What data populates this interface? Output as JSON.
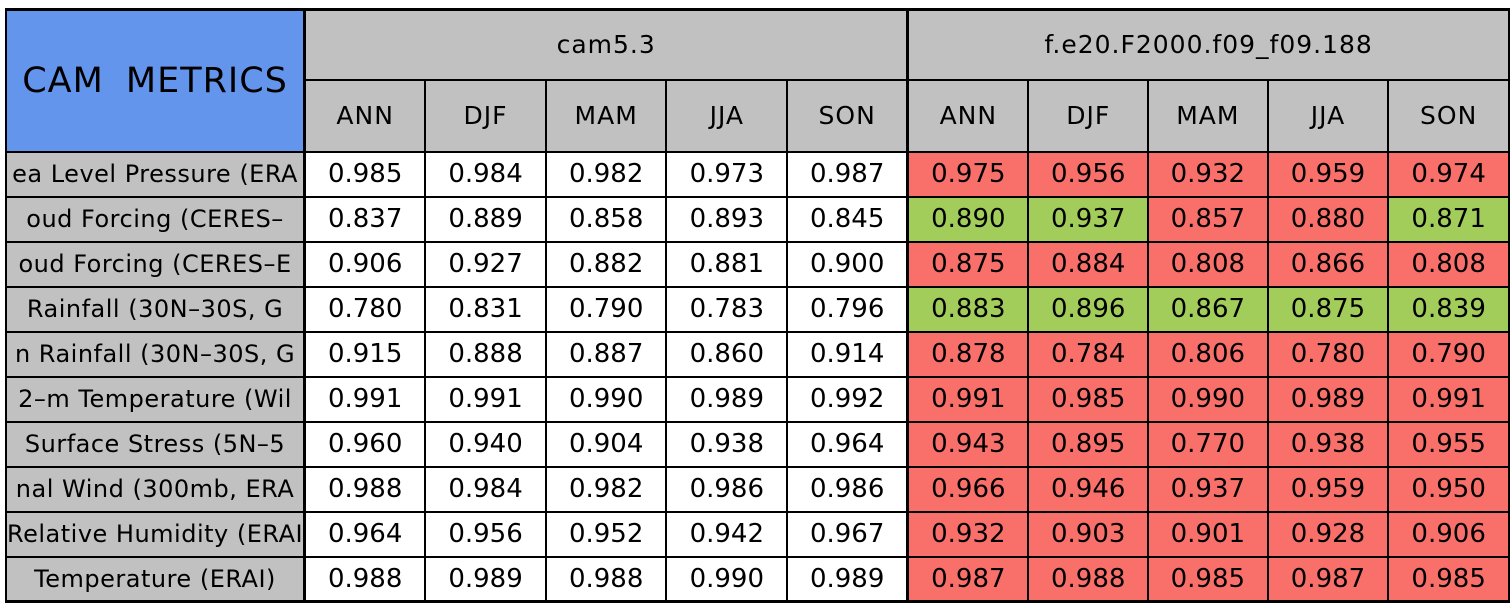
{
  "colors": {
    "header-blue": "#6495ED",
    "header-gray": "#C1C1C1",
    "worse-red": "#F9706A",
    "better-green": "#A2CD5A",
    "border-black": "#000000",
    "cell-white": "#FFFFFF"
  },
  "chart_data": {
    "type": "table",
    "title": "CAM METRICS",
    "column_groups": [
      "cam5.3",
      "f.e20.F2000.f09_f09.188"
    ],
    "season_columns": [
      "ANN",
      "DJF",
      "MAM",
      "JJA",
      "SON"
    ],
    "rows": [
      {
        "label": "ea Level Pressure (ERA",
        "cam53": [
          "0.985",
          "0.984",
          "0.982",
          "0.973",
          "0.987"
        ],
        "fe20": [
          "0.975",
          "0.956",
          "0.932",
          "0.959",
          "0.974"
        ],
        "fe20_status": [
          "worse",
          "worse",
          "worse",
          "worse",
          "worse"
        ]
      },
      {
        "label": "oud Forcing (CERES–",
        "cam53": [
          "0.837",
          "0.889",
          "0.858",
          "0.893",
          "0.845"
        ],
        "fe20": [
          "0.890",
          "0.937",
          "0.857",
          "0.880",
          "0.871"
        ],
        "fe20_status": [
          "better",
          "better",
          "worse",
          "worse",
          "better"
        ]
      },
      {
        "label": "oud Forcing (CERES–E",
        "cam53": [
          "0.906",
          "0.927",
          "0.882",
          "0.881",
          "0.900"
        ],
        "fe20": [
          "0.875",
          "0.884",
          "0.808",
          "0.866",
          "0.808"
        ],
        "fe20_status": [
          "worse",
          "worse",
          "worse",
          "worse",
          "worse"
        ]
      },
      {
        "label": "Rainfall (30N–30S, G",
        "cam53": [
          "0.780",
          "0.831",
          "0.790",
          "0.783",
          "0.796"
        ],
        "fe20": [
          "0.883",
          "0.896",
          "0.867",
          "0.875",
          "0.839"
        ],
        "fe20_status": [
          "better",
          "better",
          "better",
          "better",
          "better"
        ]
      },
      {
        "label": "n Rainfall (30N–30S, G",
        "cam53": [
          "0.915",
          "0.888",
          "0.887",
          "0.860",
          "0.914"
        ],
        "fe20": [
          "0.878",
          "0.784",
          "0.806",
          "0.780",
          "0.790"
        ],
        "fe20_status": [
          "worse",
          "worse",
          "worse",
          "worse",
          "worse"
        ]
      },
      {
        "label": "2–m Temperature (Wil",
        "cam53": [
          "0.991",
          "0.991",
          "0.990",
          "0.989",
          "0.992"
        ],
        "fe20": [
          "0.991",
          "0.985",
          "0.990",
          "0.989",
          "0.991"
        ],
        "fe20_status": [
          "worse",
          "worse",
          "worse",
          "worse",
          "worse"
        ]
      },
      {
        "label": "Surface Stress (5N–5",
        "cam53": [
          "0.960",
          "0.940",
          "0.904",
          "0.938",
          "0.964"
        ],
        "fe20": [
          "0.943",
          "0.895",
          "0.770",
          "0.938",
          "0.955"
        ],
        "fe20_status": [
          "worse",
          "worse",
          "worse",
          "worse",
          "worse"
        ]
      },
      {
        "label": "nal Wind (300mb, ERA",
        "cam53": [
          "0.988",
          "0.984",
          "0.982",
          "0.986",
          "0.986"
        ],
        "fe20": [
          "0.966",
          "0.946",
          "0.937",
          "0.959",
          "0.950"
        ],
        "fe20_status": [
          "worse",
          "worse",
          "worse",
          "worse",
          "worse"
        ]
      },
      {
        "label": "Relative Humidity (ERAI",
        "cam53": [
          "0.964",
          "0.956",
          "0.952",
          "0.942",
          "0.967"
        ],
        "fe20": [
          "0.932",
          "0.903",
          "0.901",
          "0.928",
          "0.906"
        ],
        "fe20_status": [
          "worse",
          "worse",
          "worse",
          "worse",
          "worse"
        ]
      },
      {
        "label": "Temperature (ERAI)",
        "cam53": [
          "0.988",
          "0.989",
          "0.988",
          "0.990",
          "0.989"
        ],
        "fe20": [
          "0.987",
          "0.988",
          "0.985",
          "0.987",
          "0.985"
        ],
        "fe20_status": [
          "worse",
          "worse",
          "worse",
          "worse",
          "worse"
        ]
      }
    ]
  }
}
